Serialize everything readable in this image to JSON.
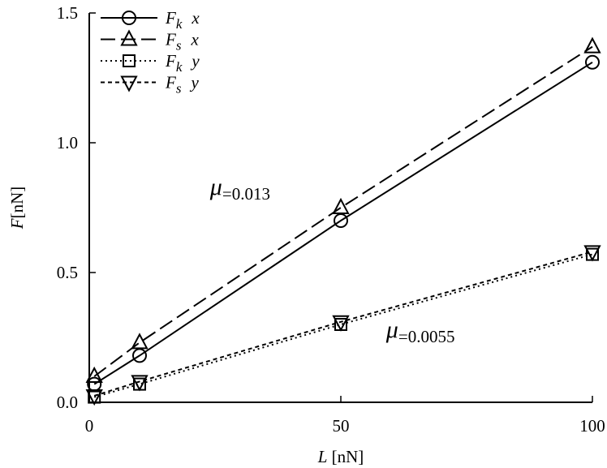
{
  "chart_data": {
    "type": "line",
    "xlabel_var": "L",
    "xlabel_unit": " [nN]",
    "ylabel_var": "F",
    "ylabel_unit": "[nN]",
    "xlim": [
      0,
      100
    ],
    "ylim": [
      0,
      1.5
    ],
    "xticks": [
      0,
      50,
      100
    ],
    "xtick_labels": [
      "0",
      "50",
      "100"
    ],
    "yticks": [
      0,
      0.5,
      1.0,
      1.5
    ],
    "ytick_labels": [
      "0.0",
      "0.5",
      "1.0",
      "1.5"
    ],
    "grid": false,
    "legend_position": "top-left",
    "x": [
      1,
      10,
      50,
      100
    ],
    "series": [
      {
        "name": "F_k x",
        "legend_main": "F",
        "legend_sub": "k",
        "legend_dir": "x",
        "line": "solid",
        "marker": "circle",
        "values": [
          0.07,
          0.18,
          0.7,
          1.31
        ]
      },
      {
        "name": "F_s x",
        "legend_main": "F",
        "legend_sub": "s",
        "legend_dir": "x",
        "line": "long-dash",
        "marker": "triangle-up",
        "values": [
          0.1,
          0.23,
          0.75,
          1.37
        ]
      },
      {
        "name": "F_k y",
        "legend_main": "F",
        "legend_sub": "k",
        "legend_dir": "y",
        "line": "dotted",
        "marker": "square",
        "values": [
          0.02,
          0.07,
          0.3,
          0.57
        ]
      },
      {
        "name": "F_s y",
        "legend_main": "F",
        "legend_sub": "s",
        "legend_dir": "y",
        "line": "short-dash",
        "marker": "triangle-down",
        "values": [
          0.025,
          0.08,
          0.31,
          0.58
        ]
      }
    ],
    "annotations": [
      {
        "symbol": "μ",
        "text": "=0.013",
        "x": 24,
        "y": 0.8
      },
      {
        "symbol": "μ",
        "text": "=0.0055",
        "x": 59,
        "y": 0.25
      }
    ]
  }
}
